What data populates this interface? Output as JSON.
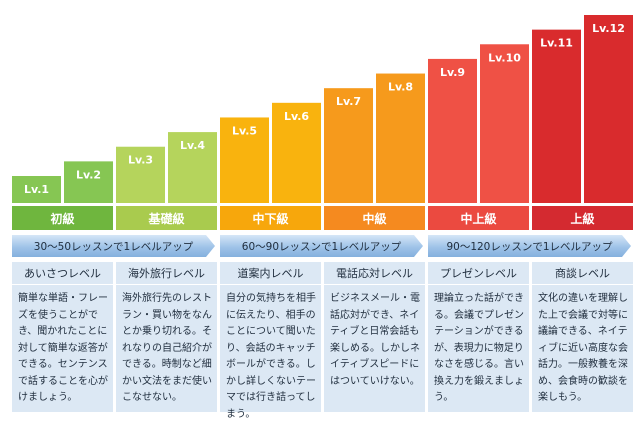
{
  "chart_data": {
    "type": "bar",
    "categories": [
      "Lv.1",
      "Lv.2",
      "Lv.3",
      "Lv.4",
      "Lv.5",
      "Lv.6",
      "Lv.7",
      "Lv.8",
      "Lv.9",
      "Lv.10",
      "Lv.11",
      "Lv.12"
    ],
    "values": [
      1,
      2,
      3,
      4,
      5,
      6,
      7,
      8,
      9,
      10,
      11,
      12
    ],
    "colors": [
      "#86c653",
      "#86c653",
      "#b5d45c",
      "#b5d45c",
      "#f9b30e",
      "#f9b30e",
      "#f69a1c",
      "#f69a1c",
      "#ef5145",
      "#ef5145",
      "#d92b2d",
      "#d92b2d"
    ]
  },
  "tiers": [
    {
      "label": "初級",
      "color": "#6fb63e"
    },
    {
      "label": "基礎級",
      "color": "#a9cb4e"
    },
    {
      "label": "中下級",
      "color": "#f7a70c"
    },
    {
      "label": "中級",
      "color": "#f58a1f"
    },
    {
      "label": "中上級",
      "color": "#eb4a40"
    },
    {
      "label": "上級",
      "color": "#d42a30"
    }
  ],
  "arrows": [
    "30～50レッスンで1レベルアップ",
    "60～90レッスンで1レベルアップ",
    "90～120レッスンで1レベルアップ"
  ],
  "cards": [
    {
      "title": "あいさつレベル",
      "body": "簡単な単語・フレーズを使うことができ、聞かれたことに対して簡単な返答ができる。センテンスで話することを心がけましょう。"
    },
    {
      "title": "海外旅行レベル",
      "body": "海外旅行先のレストラン・買い物をなんとか乗り切れる。それなりの自己紹介ができる。時制など細かい文法をまだ使いこなせない。"
    },
    {
      "title": "道案内レベル",
      "body": "自分の気持ちを相手に伝えたり、相手のことについて聞いたり、会話のキャッチボールができる。しかし詳しくないテーマでは行き詰ってしまう。"
    },
    {
      "title": "電話応対レベル",
      "body": "ビジネスメール・電話応対ができ、ネイティブと日常会話も楽しめる。しかしネイティブスピードにはついていけない。"
    },
    {
      "title": "プレゼンレベル",
      "body": "理論立った話ができる。会議でプレゼンテーションができるが、表現力に物足りなさを感じる。言い換え力を鍛えましょう。"
    },
    {
      "title": "商談レベル",
      "body": "文化の違いを理解した上で会議で対等に議論できる、ネイティブに近い高度な会話力。一般教養を深め、会食時の歓談を楽しもう。"
    }
  ]
}
